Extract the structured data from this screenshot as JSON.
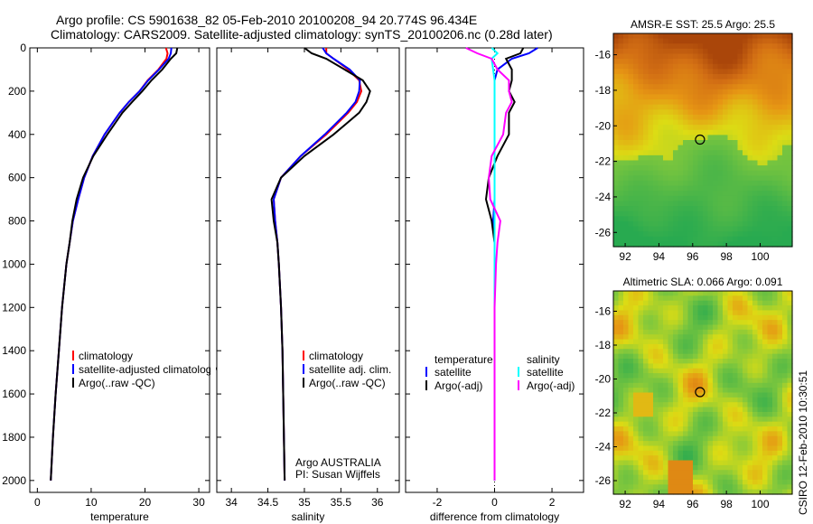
{
  "title": {
    "line1": "Argo profile: CS 5901638_82 05-Feb-2010 20100208_94 20.774S 96.434E",
    "line2": "Climatology: CARS2009. Satellite-adjusted climatology: synTS_20100206.nc (0.28d later)"
  },
  "footer": "CSIRO 12-Feb-2010 10:30:51",
  "chart_data": [
    {
      "type": "line",
      "xlabel": "temperature",
      "xlim": [
        -1.4,
        32
      ],
      "ylim": [
        2055,
        0
      ],
      "xticks": [
        0,
        10,
        20,
        30
      ],
      "xtick_labels": [
        "0",
        "10",
        "20",
        "30"
      ],
      "yticks": [
        0,
        200,
        400,
        600,
        800,
        1000,
        1200,
        1400,
        1600,
        1800,
        2000
      ],
      "ytick_labels": [
        "0",
        "200",
        "400",
        "600",
        "800",
        "1000",
        "1200",
        "1400",
        "1600",
        "1800",
        "2000"
      ],
      "depth": [
        0,
        25,
        50,
        100,
        150,
        200,
        250,
        300,
        400,
        500,
        600,
        700,
        800,
        900,
        1000,
        1200,
        1400,
        1600,
        1800,
        2000
      ],
      "series": [
        {
          "name": "climatology",
          "color": "#ff0000",
          "values": [
            23.9,
            24.2,
            24.0,
            22.5,
            20.5,
            19.0,
            17.0,
            15.3,
            12.5,
            10.3,
            8.7,
            7.6,
            6.6,
            6.0,
            5.4,
            4.6,
            4.0,
            3.4,
            2.9,
            2.5
          ]
        },
        {
          "name": "satellite-adjusted climatology",
          "color": "#0000ff",
          "values": [
            24.9,
            24.8,
            24.4,
            22.6,
            20.6,
            19.0,
            17.0,
            15.3,
            12.5,
            10.3,
            8.7,
            7.6,
            6.6,
            6.0,
            5.4,
            4.6,
            4.0,
            3.4,
            2.9,
            2.5
          ]
        },
        {
          "name": "Argo(..raw -QC)",
          "color": "#000000",
          "values": [
            26.0,
            25.8,
            24.8,
            23.2,
            21.2,
            19.5,
            17.6,
            15.8,
            13.0,
            10.4,
            8.5,
            7.3,
            6.5,
            6.0,
            5.4,
            4.6,
            4.0,
            3.4,
            2.9,
            2.5
          ]
        }
      ],
      "legend": [
        "climatology",
        "satellite-adjusted climatology",
        "Argo(..raw -QC)"
      ]
    },
    {
      "type": "line",
      "xlabel": "salinity",
      "xlim": [
        33.8,
        36.3
      ],
      "ylim": [
        2055,
        0
      ],
      "xticks": [
        34,
        34.5,
        35,
        35.5,
        36
      ],
      "xtick_labels": [
        "34",
        "34.5",
        "35",
        "35.5",
        "36"
      ],
      "depth": [
        0,
        25,
        50,
        100,
        150,
        200,
        250,
        300,
        400,
        500,
        600,
        700,
        800,
        900,
        1000,
        1200,
        1400,
        1600,
        1800,
        2000
      ],
      "series": [
        {
          "name": "climatology",
          "color": "#ff0000",
          "values": [
            35.3,
            35.3,
            35.4,
            35.6,
            35.75,
            35.78,
            35.72,
            35.6,
            35.3,
            34.95,
            34.68,
            34.58,
            34.6,
            34.63,
            34.65,
            34.68,
            34.7,
            34.71,
            34.72,
            34.73
          ]
        },
        {
          "name": "satellite adj. clim.",
          "color": "#0000ff",
          "values": [
            35.25,
            35.3,
            35.4,
            35.62,
            35.76,
            35.75,
            35.7,
            35.58,
            35.28,
            34.95,
            34.68,
            34.58,
            34.6,
            34.63,
            34.65,
            34.68,
            34.7,
            34.71,
            34.72,
            34.73
          ]
        },
        {
          "name": "Argo(..raw -QC)",
          "color": "#000000",
          "values": [
            35.0,
            35.1,
            35.3,
            35.55,
            35.8,
            35.9,
            35.85,
            35.75,
            35.4,
            35.0,
            34.68,
            34.55,
            34.58,
            34.63,
            34.65,
            34.68,
            34.7,
            34.71,
            34.72,
            34.73
          ]
        }
      ],
      "legend": [
        "climatology",
        "satellite adj. clim.",
        "Argo(..raw -QC)"
      ],
      "annotation": [
        "Argo AUSTRALIA",
        "PI: Susan Wijffels"
      ]
    },
    {
      "type": "line",
      "xlabel": "difference from climatology",
      "xlim": [
        -3.1,
        3.1
      ],
      "ylim": [
        2055,
        0
      ],
      "xticks": [
        -2,
        0,
        2
      ],
      "xtick_labels": [
        "-2",
        "0",
        "2"
      ],
      "depth": [
        0,
        25,
        50,
        100,
        150,
        200,
        250,
        300,
        400,
        500,
        600,
        700,
        800,
        900,
        1000,
        1200,
        1400,
        1600,
        1800,
        2000
      ],
      "series": [
        {
          "name": "temperature satellite",
          "color": "#0000ff",
          "values": [
            1.5,
            1.2,
            0.6,
            0.1,
            0.0,
            0.0,
            0.0,
            0.0,
            0.0,
            0.0,
            0.0,
            0.0,
            -0.05,
            0.0,
            0.0,
            0.0,
            0.0,
            0.0,
            0.0,
            0.0
          ]
        },
        {
          "name": "temperature Argo(-adj)",
          "color": "#000000",
          "values": [
            1.0,
            0.9,
            0.4,
            0.6,
            0.6,
            0.5,
            0.7,
            0.5,
            0.5,
            0.1,
            -0.2,
            -0.3,
            -0.1,
            0.0,
            0.0,
            0.0,
            0.0,
            0.0,
            0.0,
            0.0
          ]
        },
        {
          "name": "salinity satellite",
          "color": "#00ffff",
          "values": [
            -0.1,
            0.1,
            -0.1,
            -0.05,
            0.0,
            0.0,
            0.0,
            0.0,
            0.0,
            0.0,
            0.0,
            0.0,
            0.0,
            0.0,
            0.0,
            0.0,
            0.0,
            0.0,
            0.0,
            0.0
          ]
        },
        {
          "name": "salinity Argo(-adj)",
          "color": "#ff00ff",
          "values": [
            -1.0,
            -0.6,
            -0.1,
            0.1,
            0.5,
            0.5,
            0.6,
            0.4,
            0.3,
            -0.1,
            -0.2,
            -0.15,
            0.2,
            0.1,
            0.05,
            0.0,
            0.0,
            0.0,
            0.0,
            0.0
          ]
        }
      ],
      "legend": {
        "temperature": {
          "heading": "temperature",
          "items": [
            "satellite",
            "Argo(-adj)"
          ]
        },
        "salinity": {
          "heading": "salinity",
          "items": [
            "satellite",
            "Argo(-adj)"
          ]
        }
      }
    },
    {
      "type": "heatmap",
      "title": "AMSR-E SST: 25.5 Argo: 25.5",
      "xlim": [
        91.3,
        101.9
      ],
      "ylim": [
        -26.8,
        -14.8
      ],
      "xticks": [
        92,
        94,
        96,
        98,
        100
      ],
      "xtick_labels": [
        "92",
        "94",
        "96",
        "98",
        "100"
      ],
      "yticks": [
        -16,
        -18,
        -20,
        -22,
        -24,
        -26
      ],
      "ytick_labels": [
        "-16",
        "-18",
        "-20",
        "-22",
        "-24",
        "-26"
      ],
      "marker": {
        "lon": 96.434,
        "lat": -20.774
      }
    },
    {
      "type": "heatmap",
      "title": "Altimetric SLA: 0.066 Argo: 0.091",
      "xlim": [
        91.3,
        101.9
      ],
      "ylim": [
        -26.8,
        -14.8
      ],
      "xticks": [
        92,
        94,
        96,
        98,
        100
      ],
      "xtick_labels": [
        "92",
        "94",
        "96",
        "98",
        "100"
      ],
      "yticks": [
        -16,
        -18,
        -20,
        -22,
        -24,
        -26
      ],
      "ytick_labels": [
        "-16",
        "-18",
        "-20",
        "-22",
        "-24",
        "-26"
      ],
      "marker": {
        "lon": 96.434,
        "lat": -20.774
      }
    }
  ]
}
